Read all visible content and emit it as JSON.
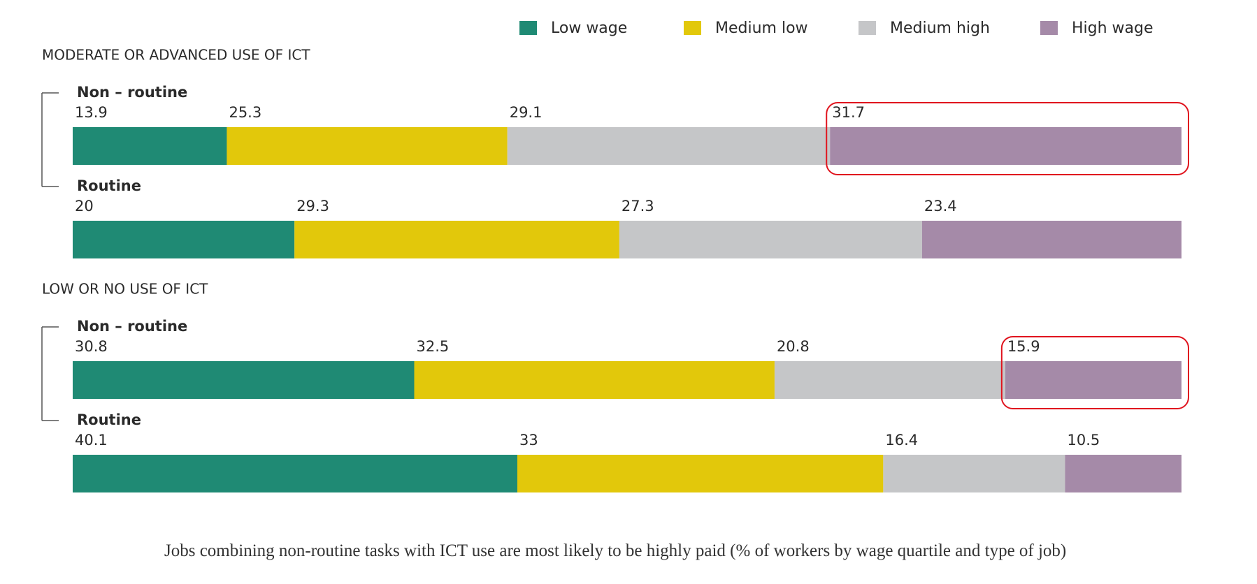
{
  "chart_data": {
    "type": "bar",
    "orientation": "horizontal",
    "stacked": true,
    "legend": "top-right",
    "xlim": [
      0,
      100
    ],
    "groups": [
      {
        "title": "MODERATE OR ADVANCED USE OF ICT",
        "categories": [
          "Non – routine",
          "Routine"
        ]
      },
      {
        "title": "LOW OR NO USE OF ICT",
        "categories": [
          "Non – routine",
          "Routine"
        ]
      }
    ],
    "series": [
      {
        "name": "Low wage",
        "color": "#1f8a74",
        "values": [
          13.9,
          20,
          30.8,
          40.1
        ]
      },
      {
        "name": "Medium low",
        "color": "#e2c80b",
        "values": [
          25.3,
          29.3,
          32.5,
          33
        ]
      },
      {
        "name": "Medium high",
        "color": "#c5c6c8",
        "values": [
          29.1,
          27.3,
          20.8,
          16.4
        ]
      },
      {
        "name": "High wage",
        "color": "#a58aa8",
        "values": [
          31.7,
          23.4,
          15.9,
          10.5
        ]
      }
    ],
    "highlight": {
      "series": 3,
      "categories": [
        0,
        2
      ],
      "color": "#e0141e"
    },
    "caption": "Jobs combining non-routine tasks with ICT use are most likely to be highly paid (% of workers by wage quartile and type of job)"
  }
}
